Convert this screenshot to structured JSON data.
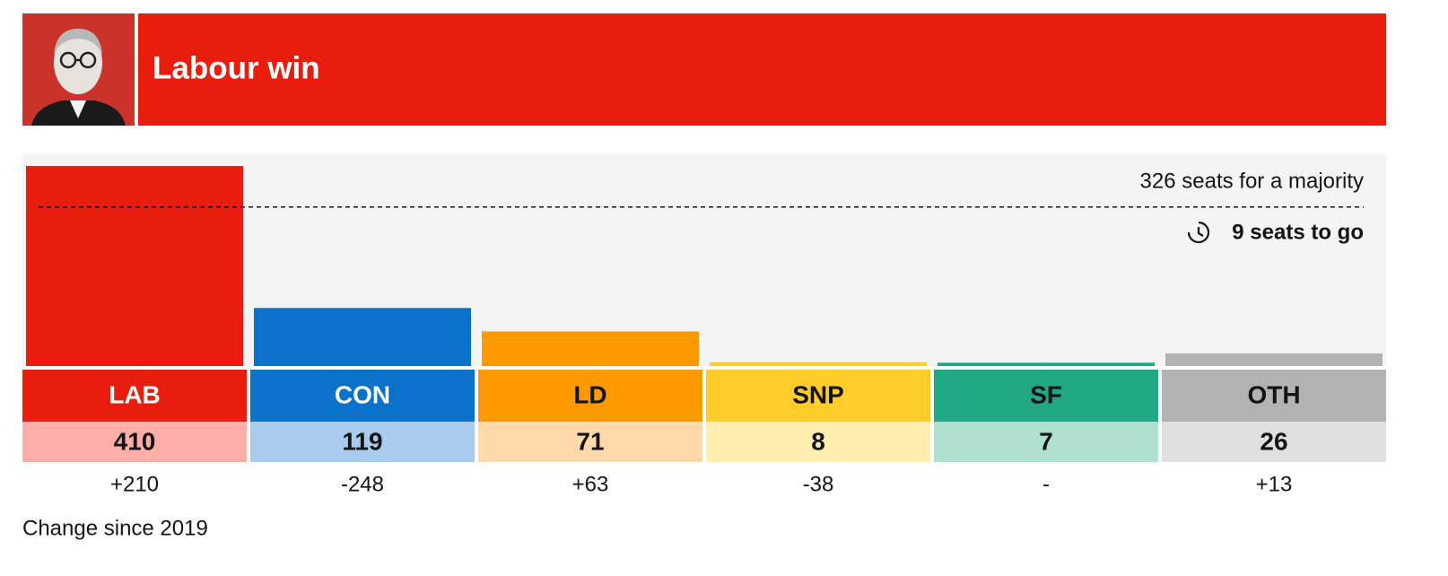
{
  "chart_data": {
    "type": "bar",
    "title": "Labour win",
    "categories": [
      "LAB",
      "CON",
      "LD",
      "SNP",
      "SF",
      "OTH"
    ],
    "values": [
      410,
      119,
      71,
      8,
      7,
      26
    ],
    "colors": [
      "#e91d0e",
      "#0a72c9",
      "#fc9a00",
      "#ffcd2a",
      "#20a884",
      "#b3b3b3"
    ],
    "light_colors": [
      "#ffaea8",
      "#a9cbee",
      "#ffd9aa",
      "#ffeeb0",
      "#b0e0cf",
      "#e0e0e0"
    ],
    "label_colors": [
      "#ffffff",
      "#ffffff",
      "#141414",
      "#141414",
      "#141414",
      "#141414"
    ],
    "changes": [
      "+210",
      "-248",
      "+63",
      "-38",
      "-",
      "+13"
    ],
    "changes_note": "Change since 2019",
    "majority": 326,
    "majority_label": "326 seats for a majority",
    "to_go_label": "9 seats to go",
    "ylim": [
      0,
      434
    ]
  }
}
